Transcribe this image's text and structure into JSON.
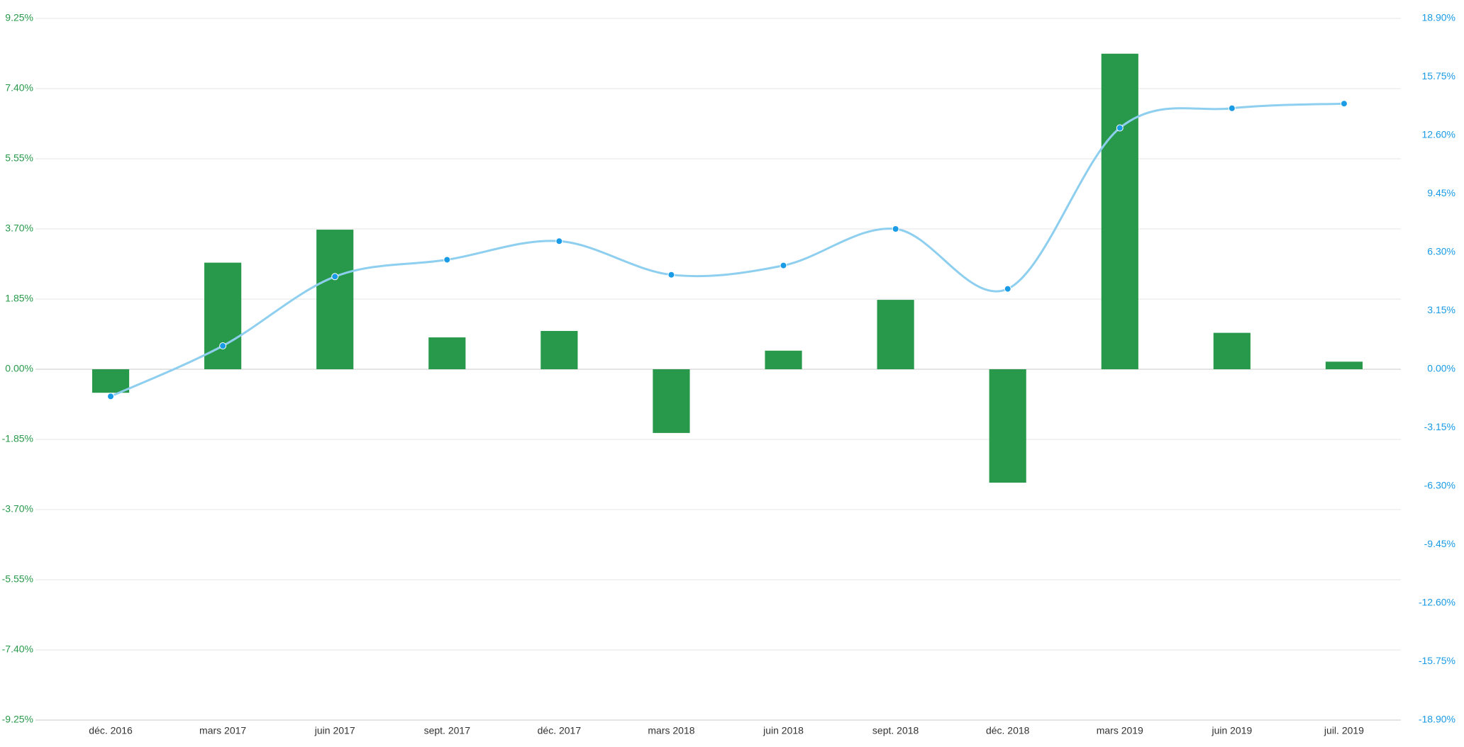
{
  "chart_data": {
    "type": "bar-line",
    "categories": [
      "déc. 2016",
      "mars 2017",
      "juin 2017",
      "sept. 2017",
      "déc. 2017",
      "mars 2018",
      "juin 2018",
      "sept. 2018",
      "déc. 2018",
      "mars 2019",
      "juin 2019",
      "juil. 2019"
    ],
    "series": [
      {
        "type": "bar",
        "color": "#28994a",
        "values": [
          -0.62,
          2.81,
          3.68,
          0.84,
          1.01,
          -1.68,
          0.49,
          1.83,
          -2.99,
          8.32,
          0.96,
          0.2
        ]
      },
      {
        "type": "line",
        "axis": "y2",
        "color": "#8ecfef",
        "marker_color": "#1a9be6",
        "values": [
          -1.46,
          1.26,
          4.99,
          5.9,
          6.9,
          5.09,
          5.59,
          7.56,
          4.33,
          13.0,
          14.06,
          14.31
        ]
      }
    ],
    "ylim": [
      -9.25,
      9.25
    ],
    "yticks": [
      {
        "value": -9.25,
        "label": "-9.25%"
      },
      {
        "value": -7.4,
        "label": "-7.40%"
      },
      {
        "value": -5.55,
        "label": "-5.55%"
      },
      {
        "value": -3.7,
        "label": "-3.70%"
      },
      {
        "value": -1.85,
        "label": "-1.85%"
      },
      {
        "value": 0,
        "label": "0.00%"
      },
      {
        "value": 1.85,
        "label": "1.85%"
      },
      {
        "value": 3.7,
        "label": "3.70%"
      },
      {
        "value": 5.55,
        "label": "5.55%"
      },
      {
        "value": 7.4,
        "label": "7.40%"
      },
      {
        "value": 9.25,
        "label": "9.25%"
      }
    ],
    "y2lim": [
      -18.9,
      18.9
    ],
    "y2ticks": [
      {
        "value": -18.9,
        "label": "-18.90%"
      },
      {
        "value": -15.75,
        "label": "-15.75%"
      },
      {
        "value": -12.6,
        "label": "-12.60%"
      },
      {
        "value": -9.45,
        "label": "-9.45%"
      },
      {
        "value": -6.3,
        "label": "-6.30%"
      },
      {
        "value": -3.15,
        "label": "-3.15%"
      },
      {
        "value": 0,
        "label": "0.00%"
      },
      {
        "value": 3.15,
        "label": "3.15%"
      },
      {
        "value": 6.3,
        "label": "6.30%"
      },
      {
        "value": 9.45,
        "label": "9.45%"
      },
      {
        "value": 12.6,
        "label": "12.60%"
      },
      {
        "value": 15.75,
        "label": "15.75%"
      },
      {
        "value": 18.9,
        "label": "18.90%"
      }
    ],
    "y_label_color": "#28994a",
    "y2_label_color": "#1a9be6",
    "grid": true
  }
}
